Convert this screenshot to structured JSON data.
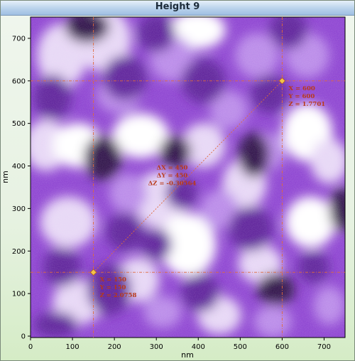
{
  "window": {
    "title": "Height 9"
  },
  "chart_data": {
    "type": "heatmap",
    "xlabel": "nm",
    "ylabel": "nm",
    "xlim": [
      0,
      750
    ],
    "ylim": [
      0,
      750
    ],
    "x_ticks": [
      "0",
      "100",
      "200",
      "300",
      "400",
      "500",
      "600",
      "700"
    ],
    "y_ticks": [
      "0",
      "100",
      "200",
      "300",
      "400",
      "500",
      "600",
      "700"
    ],
    "colormap": [
      "#2a0a45",
      "#5a1e98",
      "#8a3ed0",
      "#b887e8",
      "#e6d6f5",
      "#ffffff"
    ],
    "crosshair_color": "#e06a3c",
    "cursors": [
      {
        "x": 150,
        "y": 150,
        "labels": [
          "X = 150",
          "Y = 150",
          "Z = 2.0758"
        ]
      },
      {
        "x": 600,
        "y": 600,
        "labels": [
          "X = 600",
          "Y = 600",
          "Z = 1.7701"
        ]
      }
    ],
    "delta": {
      "labels": [
        "ΔX = 450",
        "ΔY = 450",
        "ΔZ = -0.30564"
      ]
    }
  }
}
